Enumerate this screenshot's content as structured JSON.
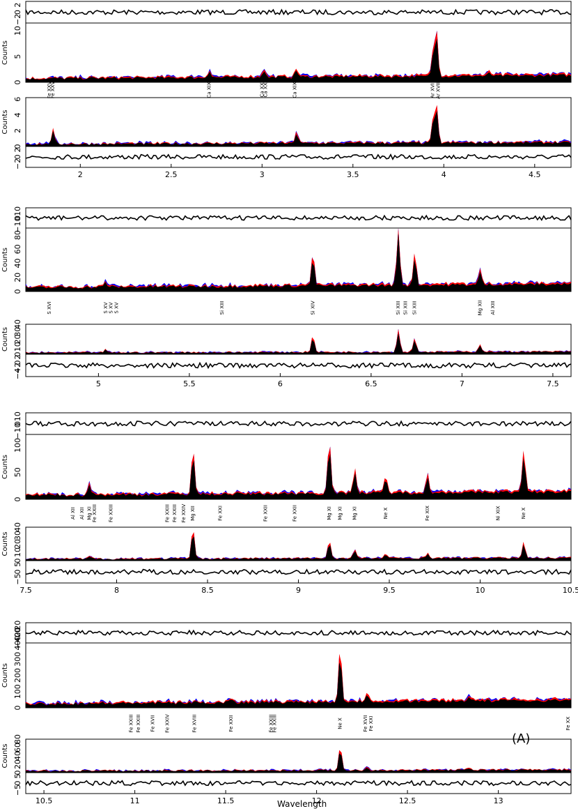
{
  "figure": {
    "xlabel": "Wavelength",
    "panel_label": "(A)",
    "ylabel_counts": "Counts",
    "colors": {
      "series_a": "#ff0000",
      "series_b": "#0000ff",
      "series_c": "#000000",
      "residual": "#000000"
    }
  },
  "chart_data": [
    {
      "type": "area",
      "xlim": [
        1.7,
        4.7
      ],
      "xticks": [
        2,
        2.5,
        3,
        3.5,
        4,
        4.5
      ],
      "xtick_labels": [
        "2",
        "2.5",
        "3",
        "3.5",
        "4",
        "4.5"
      ],
      "residual_top": {
        "yticks": [
          -2,
          0,
          2
        ],
        "yticklabels": [
          "−2",
          "0",
          "2"
        ]
      },
      "counts_top": {
        "ylim": [
          0,
          11.5
        ],
        "yticks": [
          0,
          5,
          10
        ],
        "yticklabels": [
          "0",
          "5",
          "10"
        ],
        "lines": [
          {
            "x": 2.71,
            "h": 1.3
          },
          {
            "x": 3.01,
            "h": 1.5
          },
          {
            "x": 3.19,
            "h": 1.4
          },
          {
            "x": 3.94,
            "h": 4.0
          },
          {
            "x": 3.96,
            "h": 8.5
          },
          {
            "x": 4.25,
            "h": 0.6
          }
        ]
      },
      "counts_bottom": {
        "ylim": [
          0,
          6.2
        ],
        "yticks": [
          0,
          2,
          4,
          6
        ],
        "yticklabels": [
          "0",
          "2",
          "4",
          "6"
        ],
        "lines": [
          {
            "x": 1.85,
            "h": 1.7
          },
          {
            "x": 3.19,
            "h": 1.4
          },
          {
            "x": 3.94,
            "h": 2.5
          },
          {
            "x": 3.96,
            "h": 4.4
          }
        ]
      },
      "residual_bottom": {
        "yticks": [
          -2,
          0,
          2
        ],
        "yticklabels": [
          "−2",
          "0",
          "2"
        ]
      },
      "ion_labels": [
        {
          "x": 1.83,
          "text": "Fe XXV"
        },
        {
          "x": 1.85,
          "text": "Fe XXV"
        },
        {
          "x": 2.71,
          "text": "Ca XIX"
        },
        {
          "x": 3.0,
          "text": "Ca XX"
        },
        {
          "x": 3.02,
          "text": "Ca XX"
        },
        {
          "x": 3.18,
          "text": "Ca XIX"
        },
        {
          "x": 3.94,
          "text": "Ar XVII"
        },
        {
          "x": 3.97,
          "text": "Ar XVIII"
        }
      ]
    },
    {
      "type": "area",
      "xlim": [
        4.6,
        7.6
      ],
      "xticks": [
        5,
        5.5,
        6,
        6.5,
        7,
        7.5
      ],
      "xtick_labels": [
        "5",
        "5.5",
        "6",
        "6.5",
        "7",
        "7.5"
      ],
      "residual_top": {
        "yticks": [
          -10,
          0,
          10
        ],
        "yticklabels": [
          "−10",
          "0",
          "10"
        ]
      },
      "counts_top": {
        "ylim": [
          0,
          90
        ],
        "yticks": [
          0,
          20,
          40,
          60,
          80
        ],
        "yticklabels": [
          "0",
          "20",
          "40",
          "60",
          "80"
        ],
        "lines": [
          {
            "x": 6.18,
            "h": 42
          },
          {
            "x": 6.65,
            "h": 80
          },
          {
            "x": 6.74,
            "h": 43
          },
          {
            "x": 7.1,
            "h": 18
          },
          {
            "x": 5.04,
            "h": 7
          }
        ]
      },
      "counts_bottom": {
        "ylim": [
          0,
          40
        ],
        "yticks": [
          0,
          10,
          20,
          30,
          40
        ],
        "yticklabels": [
          "0",
          "10",
          "20",
          "30",
          "40"
        ],
        "lines": [
          {
            "x": 6.18,
            "h": 21
          },
          {
            "x": 6.65,
            "h": 28
          },
          {
            "x": 6.74,
            "h": 18
          },
          {
            "x": 7.1,
            "h": 10
          },
          {
            "x": 5.04,
            "h": 4
          }
        ]
      },
      "residual_bottom": {
        "yticks": [
          -4,
          -2,
          0,
          2
        ],
        "yticklabels": [
          "−4",
          "−2",
          "0",
          "2"
        ]
      },
      "ion_labels": [
        {
          "x": 4.73,
          "text": "S XVI"
        },
        {
          "x": 5.04,
          "text": "S XV"
        },
        {
          "x": 5.07,
          "text": "S XV"
        },
        {
          "x": 5.1,
          "text": "S XV"
        },
        {
          "x": 5.68,
          "text": "Si XIII"
        },
        {
          "x": 6.18,
          "text": "Si XIV"
        },
        {
          "x": 6.65,
          "text": "Si XIII"
        },
        {
          "x": 6.69,
          "text": "Si XIII"
        },
        {
          "x": 6.74,
          "text": "Si XIII"
        },
        {
          "x": 7.1,
          "text": "Mg XII"
        },
        {
          "x": 7.17,
          "text": "Al XIII"
        }
      ]
    },
    {
      "type": "area",
      "xlim": [
        7.5,
        10.5
      ],
      "xticks": [
        7.5,
        8,
        8.5,
        9,
        9.5,
        10,
        10.5
      ],
      "xtick_labels": [
        "7.5",
        "8",
        "8.5",
        "9",
        "9.5",
        "10",
        "10.5"
      ],
      "residual_top": {
        "yticks": [
          -10,
          0,
          10
        ],
        "yticklabels": [
          "−10",
          "0",
          "10"
        ]
      },
      "counts_top": {
        "ylim": [
          0,
          120
        ],
        "yticks": [
          0,
          50,
          100
        ],
        "yticklabels": [
          "0",
          "50",
          "100"
        ],
        "lines": [
          {
            "x": 7.85,
            "h": 22
          },
          {
            "x": 8.42,
            "h": 80
          },
          {
            "x": 9.17,
            "h": 95
          },
          {
            "x": 9.31,
            "h": 45
          },
          {
            "x": 9.48,
            "h": 28
          },
          {
            "x": 9.71,
            "h": 30
          },
          {
            "x": 10.24,
            "h": 72
          }
        ]
      },
      "counts_bottom": {
        "ylim": [
          0,
          40
        ],
        "yticks": [
          0,
          10,
          20,
          30,
          40
        ],
        "yticklabels": [
          "0",
          "10",
          "20",
          "30",
          "40"
        ],
        "lines": [
          {
            "x": 7.85,
            "h": 3
          },
          {
            "x": 8.42,
            "h": 35
          },
          {
            "x": 9.17,
            "h": 21
          },
          {
            "x": 9.31,
            "h": 10
          },
          {
            "x": 9.48,
            "h": 5
          },
          {
            "x": 9.71,
            "h": 6
          },
          {
            "x": 10.24,
            "h": 18
          }
        ]
      },
      "residual_bottom": {
        "yticks": [
          -5,
          0,
          5
        ],
        "yticklabels": [
          "−5",
          "0",
          "5"
        ]
      },
      "ion_labels": [
        {
          "x": 7.76,
          "text": "Al XII"
        },
        {
          "x": 7.81,
          "text": "Al XII"
        },
        {
          "x": 7.85,
          "text": "Mg XI"
        },
        {
          "x": 7.88,
          "text": "Fe XXIII"
        },
        {
          "x": 7.97,
          "text": "Fe XXIII"
        },
        {
          "x": 8.28,
          "text": "Fe XXIII"
        },
        {
          "x": 8.32,
          "text": "Fe XXIII"
        },
        {
          "x": 8.37,
          "text": "Fe XXIV"
        },
        {
          "x": 8.42,
          "text": "Mg XII"
        },
        {
          "x": 8.57,
          "text": "Fe XXI"
        },
        {
          "x": 8.82,
          "text": "Fe XXII"
        },
        {
          "x": 8.98,
          "text": "Fe XXII"
        },
        {
          "x": 9.17,
          "text": "Mg XI"
        },
        {
          "x": 9.23,
          "text": "Mg XI"
        },
        {
          "x": 9.31,
          "text": "Mg XI"
        },
        {
          "x": 9.48,
          "text": "Ne X"
        },
        {
          "x": 9.71,
          "text": "Fe XIX"
        },
        {
          "x": 10.1,
          "text": "Ni XIX"
        },
        {
          "x": 10.24,
          "text": "Ne X"
        }
      ]
    },
    {
      "type": "area",
      "xlim": [
        10.4,
        13.4
      ],
      "xticks": [
        10.5,
        11,
        11.5,
        12,
        12.5,
        13
      ],
      "xtick_labels": [
        "10.5",
        "11",
        "11.5",
        "12",
        "12.5",
        "13"
      ],
      "residual_top": {
        "yticks": [
          -40,
          -20,
          0,
          20
        ],
        "yticklabels": [
          "−40",
          "−20",
          "0",
          "20"
        ]
      },
      "counts_top": {
        "ylim": [
          0,
          400
        ],
        "yticks": [
          0,
          100,
          200,
          300,
          400
        ],
        "yticklabels": [
          "0",
          "100",
          "200",
          "300",
          "400"
        ],
        "lines": [
          {
            "x": 12.13,
            "h": 310
          },
          {
            "x": 12.28,
            "h": 55
          },
          {
            "x": 11.53,
            "h": 30
          },
          {
            "x": 12.84,
            "h": 35
          }
        ]
      },
      "counts_bottom": {
        "ylim": [
          0,
          80
        ],
        "yticks": [
          0,
          20,
          40,
          60,
          80
        ],
        "yticklabels": [
          "0",
          "20",
          "40",
          "60",
          "80"
        ],
        "lines": [
          {
            "x": 12.13,
            "h": 55
          },
          {
            "x": 12.28,
            "h": 8
          },
          {
            "x": 12.84,
            "h": 5
          }
        ]
      },
      "residual_bottom": {
        "yticks": [
          -5,
          0,
          5
        ],
        "yticklabels": [
          "−5",
          "0",
          "5"
        ]
      },
      "ion_labels": [
        {
          "x": 10.98,
          "text": "Fe XXIII"
        },
        {
          "x": 11.02,
          "text": "Fe XXIII"
        },
        {
          "x": 11.1,
          "text": "Fe XVII"
        },
        {
          "x": 11.18,
          "text": "Fe XXIV"
        },
        {
          "x": 11.33,
          "text": "Fe XVIII"
        },
        {
          "x": 11.53,
          "text": "Fe XXII"
        },
        {
          "x": 11.75,
          "text": "Fe XXIII"
        },
        {
          "x": 11.77,
          "text": "Fe XXIII"
        },
        {
          "x": 12.13,
          "text": "Ne X"
        },
        {
          "x": 12.27,
          "text": "Fe XVII"
        },
        {
          "x": 12.3,
          "text": "Fe XXI"
        },
        {
          "x": 13.4,
          "text": "Fe XX"
        }
      ]
    }
  ]
}
